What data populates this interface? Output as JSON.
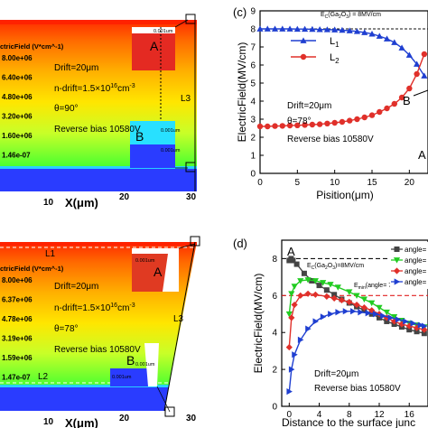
{
  "colors": {
    "l1": "#1f3fd1",
    "l2": "#e0302a",
    "series_angles": [
      "#444444",
      "#22cc22",
      "#e0302a",
      "#1f3fd1"
    ],
    "ref_black": "#111111",
    "ref_red": "#e02020",
    "field_top": "#ff2a00",
    "field_mid": "#ffe100",
    "field_low": "#35ff35",
    "field_bottom": "#2040ff"
  },
  "icons": [
    "square-marker",
    "triangle-marker",
    "circle-marker",
    "triangle-down-marker",
    "diamond-marker"
  ],
  "panel_a": {
    "colorbar_title": "ctricField (V*cm^-1)",
    "colorbar_values": [
      "8.00e+06",
      "6.40e+06",
      "4.80e+06",
      "3.20e+06",
      "1.60e+06",
      "1.46e-07"
    ],
    "drift": "Drift=20μm",
    "ndrift_base": "n-drift=1.5×10",
    "ndrift_exp": "16",
    "ndrift_unit": "cm",
    "ndrift_unit_exp": "-3",
    "theta": "θ=90°",
    "bias": "Reverse bias 10580V",
    "label_A": "A",
    "label_B": "B",
    "label_L3": "L3",
    "inset_scale_1": "0.001um",
    "inset_scale_2": "0.001um",
    "inset_scale_3": "0.001um",
    "xlabel": "X(μm)",
    "xticks": [
      "10",
      "20",
      "30"
    ]
  },
  "panel_b": {
    "colorbar_title": "ctricField (V*cm^-1)",
    "colorbar_values": [
      "8.00e+06",
      "6.37e+06",
      "4.78e+06",
      "3.19e+06",
      "1.59e+06",
      "1.47e-07"
    ],
    "drift": "Drift=20μm",
    "ndrift_base": "n-drift=1.5×10",
    "ndrift_exp": "16",
    "ndrift_unit": "cm",
    "ndrift_unit_exp": "-3",
    "theta": "θ=78°",
    "bias": "Reverse bias 10580V",
    "label_A": "A",
    "label_B": "B",
    "label_L1": "L1",
    "label_L2": "L2",
    "label_L3": "L3",
    "inset_scale_1": "0.001um",
    "inset_scale_2": "0.001um",
    "inset_scale_3": "0.001um",
    "xlabel": "X(μm)",
    "xticks": [
      "10",
      "20",
      "30"
    ]
  },
  "chart_data": [
    {
      "panel": "c",
      "type": "line",
      "panel_label": "(c)",
      "reference_label": "E",
      "reference_sub": "C",
      "reference_rest": "(Ga",
      "reference_sub2": "2",
      "reference_o": "O",
      "reference_sub3": "3",
      "reference_tail": ") = 8MV/cm",
      "reference_value": 8,
      "xlabel": "Pisition(μm)",
      "ylabel": "ElectricField(MV/cm)",
      "xlim": [
        0,
        22.5
      ],
      "ylim": [
        0,
        9
      ],
      "xticks": [
        0,
        5,
        10,
        15,
        20
      ],
      "yticks": [
        0,
        1,
        2,
        3,
        4,
        5,
        6,
        7,
        8,
        9
      ],
      "legend_position": "top-right",
      "legend": [
        "L",
        "L"
      ],
      "legend_sub": [
        "1",
        "2"
      ],
      "annotations": [
        "Drift=20μm",
        "θ=78°",
        "Reverse bias 10580V",
        "B",
        "A"
      ],
      "series": [
        {
          "x": [
            0,
            1,
            2,
            3,
            4,
            5,
            6,
            7,
            8,
            9,
            10,
            11,
            12,
            13,
            14,
            15,
            16,
            17,
            18,
            19,
            20,
            21,
            22
          ],
          "y": [
            8.0,
            8.0,
            8.0,
            8.0,
            8.0,
            7.99,
            7.99,
            7.98,
            7.97,
            7.96,
            7.95,
            7.93,
            7.9,
            7.86,
            7.8,
            7.72,
            7.6,
            7.45,
            7.25,
            6.95,
            6.55,
            6.05,
            5.4
          ],
          "marker": "triangle"
        },
        {
          "x": [
            0,
            1,
            2,
            3,
            4,
            5,
            6,
            7,
            8,
            9,
            10,
            11,
            12,
            13,
            14,
            15,
            16,
            17,
            18,
            19,
            20,
            21,
            22
          ],
          "y": [
            2.6,
            2.6,
            2.62,
            2.63,
            2.65,
            2.66,
            2.68,
            2.7,
            2.72,
            2.76,
            2.8,
            2.85,
            2.92,
            3.0,
            3.1,
            3.22,
            3.4,
            3.6,
            3.85,
            4.2,
            4.7,
            5.5,
            6.6
          ],
          "marker": "circle"
        }
      ]
    },
    {
      "panel": "d",
      "type": "line",
      "panel_label": "(d)",
      "xlabel": "Distance to the surface junc",
      "ylabel": "ElectricField(MV/cm)",
      "xlim": [
        -1,
        18.5
      ],
      "ylim": [
        0,
        9
      ],
      "xticks": [
        0,
        4,
        8,
        12,
        16
      ],
      "yticks": [
        0,
        2,
        4,
        6,
        8
      ],
      "legend_position": "top-right",
      "legend": [
        "angle=",
        "angle=",
        "angle=",
        "angle="
      ],
      "annotations": [
        "A",
        "Drift=20μm",
        "Reverse bias 10580V"
      ],
      "ref_black_label": "E",
      "ref_black_sub": "C",
      "ref_black_rest": "(Ga",
      "ref_black_sub2": "2",
      "ref_black_o": "O",
      "ref_black_sub3": "3",
      "ref_black_tail": ")=8MV/cm",
      "ref_black_value": 8,
      "ref_red_label": "E",
      "ref_red_sub": "min",
      "ref_red_tail": "(angle= 78°)= 6M",
      "ref_red_value": 6,
      "series": [
        {
          "x": [
            0,
            0.25,
            0.5,
            1,
            2,
            3,
            4,
            5,
            6,
            7,
            8,
            9,
            10,
            11,
            12,
            13,
            14,
            15,
            16,
            17,
            18
          ],
          "y": [
            7.9,
            8.0,
            7.9,
            7.7,
            7.2,
            6.8,
            6.55,
            6.3,
            6.05,
            5.8,
            5.6,
            5.4,
            5.2,
            5.0,
            4.8,
            4.6,
            4.45,
            4.3,
            4.15,
            4.05,
            3.95
          ],
          "marker": "square"
        },
        {
          "x": [
            0,
            0.3,
            0.7,
            1.5,
            2.5,
            3.5,
            4.5,
            5.5,
            6.5,
            8,
            9,
            10,
            11,
            12,
            13,
            14,
            15,
            16,
            17,
            18
          ],
          "y": [
            5.0,
            6.1,
            6.5,
            6.8,
            6.85,
            6.8,
            6.7,
            6.6,
            6.45,
            6.2,
            6.0,
            5.8,
            5.6,
            5.35,
            5.1,
            4.85,
            4.65,
            4.5,
            4.4,
            4.3
          ],
          "marker": "triangle-down"
        },
        {
          "x": [
            0,
            0.3,
            0.7,
            1.5,
            2.5,
            3.5,
            5,
            6,
            7,
            8,
            9,
            10,
            11,
            12,
            13,
            14,
            15,
            16,
            17,
            18
          ],
          "y": [
            3.2,
            4.8,
            5.5,
            6.0,
            6.1,
            6.05,
            5.95,
            5.85,
            5.75,
            5.65,
            5.5,
            5.35,
            5.2,
            5.0,
            4.8,
            4.6,
            4.45,
            4.35,
            4.25,
            4.15
          ],
          "marker": "diamond"
        },
        {
          "x": [
            0,
            0.3,
            0.7,
            1.5,
            2.5,
            3.5,
            4.5,
            5.5,
            6.5,
            7.5,
            8.5,
            9.5,
            10.5,
            11.5,
            12.5,
            13.5,
            14.5,
            15.5,
            16.5,
            17.5,
            18
          ],
          "y": [
            0.8,
            2.0,
            2.8,
            3.6,
            4.2,
            4.6,
            4.85,
            5.0,
            5.1,
            5.15,
            5.15,
            5.1,
            5.05,
            5.0,
            4.9,
            4.8,
            4.7,
            4.6,
            4.5,
            4.4,
            4.35
          ],
          "marker": "triangle-right"
        }
      ]
    }
  ]
}
